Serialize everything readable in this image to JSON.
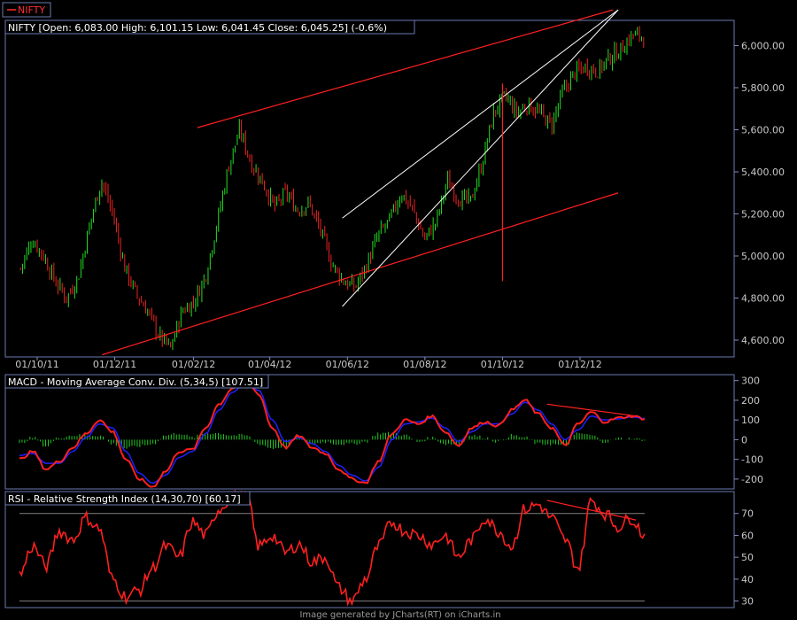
{
  "legend_symbol": "NIFTY",
  "footer": "Image generated by JCharts(RT) on iCharts.in",
  "colors": {
    "background": "#000000",
    "panel_border": "#6a7ab0",
    "up_candle": "#22dd22",
    "down_candle": "#ee2222",
    "trendline": "#ff2020",
    "channel": "#ffffff",
    "macd": "#ff2020",
    "signal": "#2020ff",
    "histogram": "#22cc22",
    "rsi": "#ff2020",
    "rsi_bounds": "#808080"
  },
  "chart_data": [
    {
      "type": "candlestick",
      "title": "NIFTY [Open: 6,083.00  High: 6,101.15  Low: 6,041.45  Close: 6,045.25] (-0.6%)",
      "x_tick_labels": [
        "01/10/11",
        "01/12/11",
        "01/02/12",
        "01/04/12",
        "01/06/12",
        "01/08/12",
        "01/10/12",
        "01/12/12"
      ],
      "y_tick_values": [
        4600,
        4800,
        5000,
        5200,
        5400,
        5600,
        5800,
        6000
      ],
      "y_tick_labels": [
        "4,600.00",
        "4,800.00",
        "5,000.00",
        "5,200.00",
        "5,400.00",
        "5,600.00",
        "5,800.00",
        "6,000.00"
      ],
      "ylim": [
        4520,
        6120
      ],
      "closes_weekly_approx": [
        4940,
        5080,
        5000,
        4880,
        4800,
        4900,
        5150,
        5360,
        5200,
        4950,
        4820,
        4740,
        4620,
        4560,
        4740,
        4780,
        4900,
        5150,
        5420,
        5600,
        5440,
        5350,
        5230,
        5300,
        5220,
        5250,
        5120,
        4960,
        4880,
        4850,
        4960,
        5100,
        5170,
        5300,
        5220,
        5080,
        5160,
        5360,
        5270,
        5260,
        5440,
        5680,
        5760,
        5680,
        5720,
        5680,
        5620,
        5780,
        5870,
        5900,
        5880,
        5940,
        5980,
        6050,
        6045
      ],
      "red_trendlines": [
        {
          "from": [
            "04/02/12",
            5610
          ],
          "to": [
            "27/12/12",
            6170
          ]
        },
        {
          "from": [
            "21/11/11",
            4530
          ],
          "to": [
            "31/12/12",
            5300
          ]
        }
      ],
      "white_channel": [
        {
          "from": [
            "28/05/12",
            4760
          ],
          "to": [
            "31/12/12",
            6170
          ]
        },
        {
          "from": [
            "28/05/12",
            5180
          ],
          "to": [
            "31/12/12",
            6170
          ]
        }
      ],
      "vertical_marker": {
        "date": "01/10/12",
        "low": 4880,
        "high": 5820
      }
    },
    {
      "type": "line",
      "title": "MACD - Moving Average Conv. Div. (5,34,5) [107.51]",
      "y_tick_values": [
        -200,
        -100,
        0,
        100,
        200,
        300
      ],
      "y_tick_labels": [
        "-200",
        "-100",
        "0",
        "100",
        "200",
        "300"
      ],
      "ylim": [
        -250,
        330
      ],
      "series": [
        {
          "name": "MACD",
          "values": [
            -100,
            -60,
            -150,
            -110,
            -40,
            30,
            100,
            40,
            -100,
            -200,
            -240,
            -160,
            -60,
            -50,
            60,
            180,
            260,
            310,
            230,
            60,
            -40,
            20,
            -40,
            -70,
            -150,
            -200,
            -220,
            -110,
            30,
            100,
            80,
            120,
            40,
            -30,
            60,
            90,
            70,
            150,
            200,
            130,
            60,
            -30,
            80,
            140,
            90,
            110,
            120,
            107
          ]
        },
        {
          "name": "Signal",
          "values": [
            -80,
            -70,
            -120,
            -120,
            -60,
            10,
            80,
            60,
            -60,
            -170,
            -220,
            -180,
            -90,
            -60,
            30,
            150,
            240,
            290,
            250,
            100,
            -10,
            10,
            -20,
            -60,
            -130,
            -180,
            -210,
            -140,
            0,
            80,
            90,
            110,
            60,
            -10,
            40,
            80,
            80,
            130,
            190,
            150,
            80,
            0,
            50,
            120,
            100,
            105,
            115,
            108
          ]
        }
      ],
      "divergence_line": {
        "from": [
          "05/11/12",
          180
        ],
        "to": [
          "31/12/12",
          120
        ]
      }
    },
    {
      "type": "line",
      "title": "RSI - Relative Strength Index (14,30,70) [60.17]",
      "y_tick_values": [
        30,
        40,
        50,
        60,
        70
      ],
      "y_tick_labels": [
        "30",
        "40",
        "50",
        "60",
        "70"
      ],
      "ylim": [
        27,
        80
      ],
      "bounds": [
        30,
        70
      ],
      "series": [
        {
          "name": "RSI",
          "values": [
            42,
            55,
            46,
            62,
            58,
            68,
            63,
            40,
            32,
            35,
            45,
            55,
            50,
            66,
            60,
            72,
            78,
            80,
            55,
            60,
            52,
            56,
            48,
            50,
            36,
            30,
            40,
            55,
            66,
            62,
            60,
            56,
            60,
            50,
            58,
            68,
            62,
            55,
            72,
            74,
            68,
            58,
            45,
            76,
            70,
            64,
            68,
            60
          ]
        }
      ],
      "divergence_line": {
        "from": [
          "05/11/12",
          76
        ],
        "to": [
          "31/12/12",
          67
        ]
      }
    }
  ]
}
